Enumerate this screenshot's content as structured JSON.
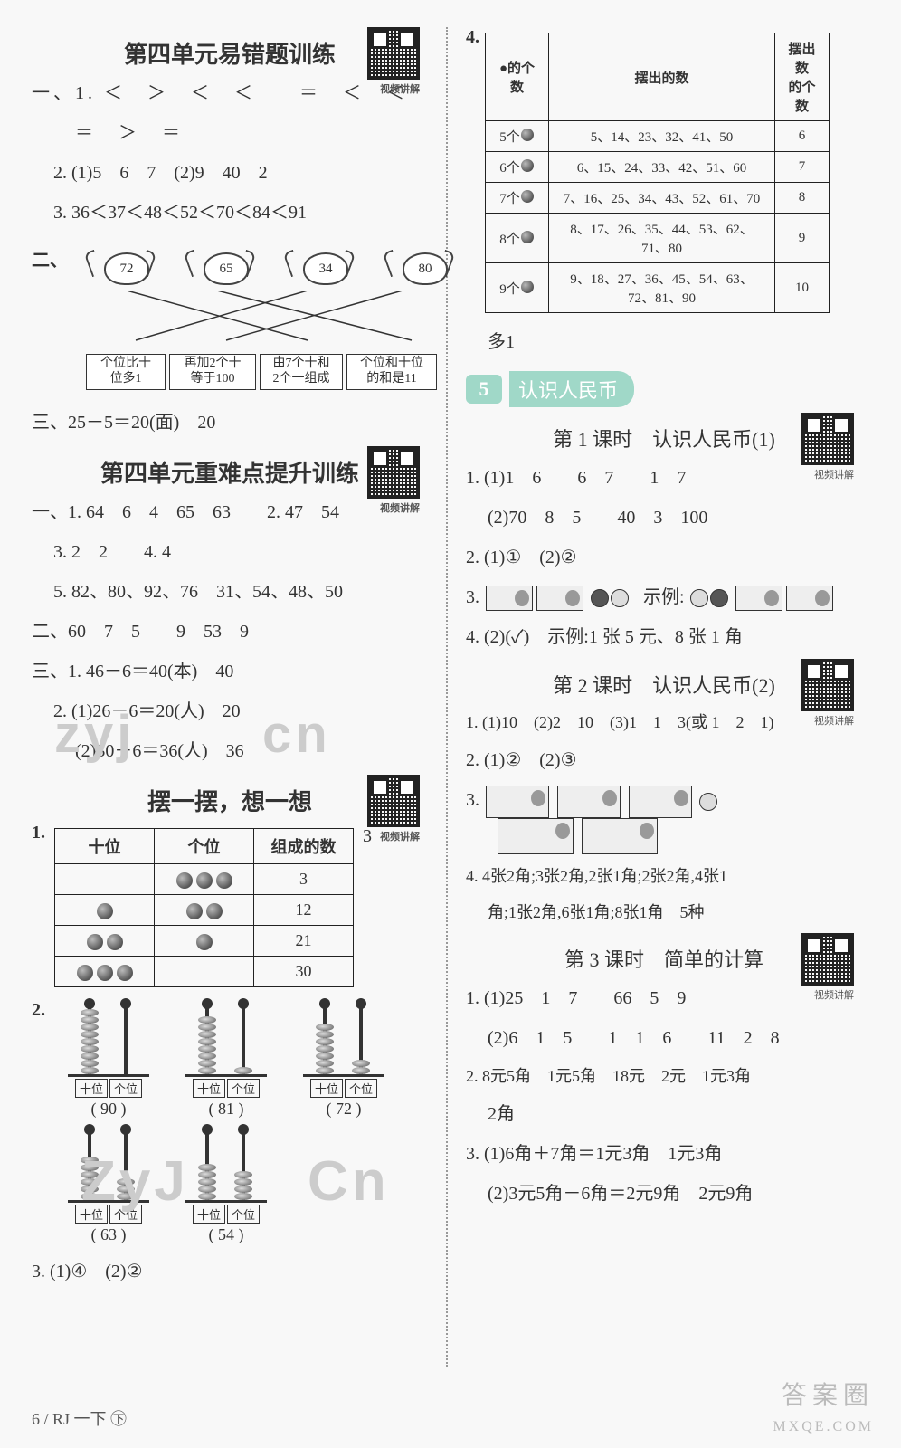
{
  "qr_label": "视频讲解",
  "left": {
    "sec1_title": "第四单元易错题训练",
    "sec1": {
      "q1_l1": "一、1. ＜　＞　＜　＜　　＝　＜　＜",
      "q1_l2": "＝　＞　＝",
      "q2": "2. (1)5　6　7　(2)9　40　2",
      "q3": "3. 36＜37＜48＜52＜70＜84＜91",
      "q2_label": "二、",
      "crabs": [
        "72",
        "65",
        "34",
        "80"
      ],
      "boxes": [
        "个位比十\n位多1",
        "再加2个十\n等于100",
        "由7个十和\n2个一组成",
        "个位和十位\n的和是11"
      ],
      "q3_ans": "三、25－5＝20(面)　20"
    },
    "sec2_title": "第四单元重难点提升训练",
    "sec2": {
      "l1": "一、1. 64　6　4　65　63　　2. 47　54",
      "l2": "3. 2　2　　4. 4",
      "l3": "5. 82、80、92、76　31、54、48、50",
      "l4": "二、60　7　5　　9　53　9",
      "l5": "三、1. 46－6＝40(本)　40",
      "l6": "2. (1)26－6＝20(人)　20",
      "l7": "(2)30＋6＝36(人)　36"
    },
    "sec3_title": "摆一摆，想一想",
    "table1": {
      "headers": [
        "十位",
        "个位",
        "组成的数"
      ],
      "rows": [
        {
          "t": 0,
          "o": 3,
          "v": "3"
        },
        {
          "t": 1,
          "o": 2,
          "v": "12"
        },
        {
          "t": 2,
          "o": 1,
          "v": "21"
        },
        {
          "t": 3,
          "o": 0,
          "v": "30"
        }
      ],
      "side": "3"
    },
    "abacus_label_t": "十位",
    "abacus_label_o": "个位",
    "abacus1": [
      {
        "t": 9,
        "o": 0,
        "v": "( 90 )"
      },
      {
        "t": 8,
        "o": 1,
        "v": "( 81 )"
      },
      {
        "t": 7,
        "o": 2,
        "v": "( 72 )"
      }
    ],
    "abacus2": [
      {
        "t": 6,
        "o": 3,
        "v": "( 63 )"
      },
      {
        "t": 5,
        "o": 4,
        "v": "( 54 )"
      }
    ],
    "q3": "3. (1)④　(2)②"
  },
  "right": {
    "table4": {
      "headers": [
        "●的个数",
        "摆出的数",
        "摆出数\n的个数"
      ],
      "rows": [
        [
          "5个●",
          "5、14、23、32、41、50",
          "6"
        ],
        [
          "6个●",
          "6、15、24、33、42、51、60",
          "7"
        ],
        [
          "7个●",
          "7、16、25、34、43、52、61、70",
          "8"
        ],
        [
          "8个●",
          "8、17、26、35、44、53、62、71、80",
          "9"
        ],
        [
          "9个●",
          "9、18、27、36、45、54、63、72、81、90",
          "10"
        ]
      ],
      "after": "多1"
    },
    "unit_num": "5",
    "unit_name": "认识人民币",
    "lesson1": {
      "title": "第 1 课时　认识人民币(1)",
      "l1": "1. (1)1　6　　6　7　　1　7",
      "l2": "(2)70　8　5　　40　3　100",
      "l3": "2. (1)①　(2)②",
      "l4a": "3.",
      "l4b": "示例:",
      "l5": "4. (2)(✓)　示例:1 张 5 元、8 张 1 角"
    },
    "lesson2": {
      "title": "第 2 课时　认识人民币(2)",
      "l1": "1. (1)10　(2)2　10　(3)1　1　3(或 1　2　1)",
      "l2": "2. (1)②　(2)③",
      "l3": "3.",
      "l4": "4. 4张2角;3张2角,2张1角;2张2角,4张1",
      "l5": "角;1张2角,6张1角;8张1角　5种"
    },
    "lesson3": {
      "title": "第 3 课时　简单的计算",
      "l1": "1. (1)25　1　7　　66　5　9",
      "l2": "(2)6　1　5　　1　1　6　　11　2　8",
      "l3": "2. 8元5角　1元5角　18元　2元　1元3角",
      "l4": "2角",
      "l5": "3. (1)6角＋7角＝1元3角　1元3角",
      "l6": "(2)3元5角－6角＝2元9角　2元9角"
    }
  },
  "footer": "6 / RJ 一下 ㊦",
  "watermark1": "答案圈",
  "watermark2": "MXQE.COM",
  "ghost1": "zyj",
  "ghost2": "cn",
  "ghost3": "ZyJ",
  "ghost4": "Cn"
}
